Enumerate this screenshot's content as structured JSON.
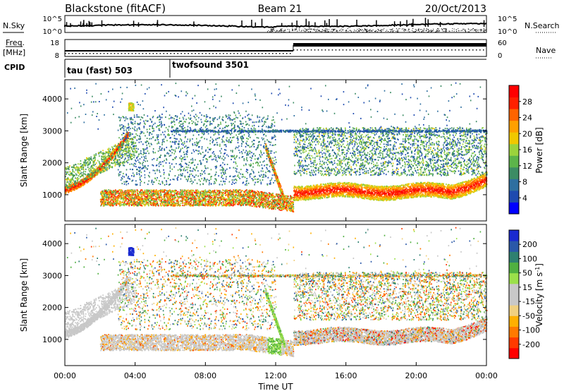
{
  "header": {
    "site": "Blackstone (fitACF)",
    "beam": "Beam 21",
    "date": "20/Oct/2013"
  },
  "left_labels": {
    "nsky": "N.Sky",
    "freq_line1": "Freq.",
    "freq_line2": "[MHz]",
    "cpid": "CPID"
  },
  "right_labels": {
    "nsearch": "N.Search",
    "nave": "Nave"
  },
  "noise_axis": {
    "left_ticks": [
      "10^5",
      "10^0"
    ],
    "right_ticks": [
      "10^5",
      "10^0"
    ]
  },
  "freq_axis": {
    "left_ticks": [
      "18",
      "8"
    ],
    "right_ticks": [
      "60",
      "0"
    ]
  },
  "cpid_segments": [
    {
      "label": "tau (fast) 503",
      "start_hour": 0,
      "end_hour": 6
    },
    {
      "label": "twofsound 3501",
      "start_hour": 6,
      "end_hour": 24
    }
  ],
  "time_axis": {
    "label": "Time UT",
    "ticks": [
      "00:00",
      "04:00",
      "08:00",
      "12:00",
      "16:00",
      "20:00",
      "00:00"
    ]
  },
  "chart_data": [
    {
      "type": "heatmap",
      "title": "",
      "xlabel": "Time UT",
      "ylabel": "Slant Range [km]",
      "xlim_hours": [
        0,
        24
      ],
      "ylim_km": [
        180,
        4600
      ],
      "y_ticks": [
        1000,
        2000,
        3000,
        4000
      ],
      "colorbar": {
        "label": "Power [dB]",
        "ticks": [
          "4",
          "8",
          "12",
          "16",
          "20",
          "24",
          "28"
        ],
        "range": [
          0,
          30
        ],
        "colors": [
          "#0000ff",
          "#1e4ab0",
          "#2e6fa0",
          "#3c8c64",
          "#5cb44a",
          "#9bd33c",
          "#f0c800",
          "#ffa000",
          "#ff6400",
          "#ff2000",
          "#ff0000"
        ]
      },
      "features": [
        {
          "name": "groundscatter band",
          "time_hours": [
            0,
            13
          ],
          "range_km": [
            600,
            1300
          ]
        },
        {
          "name": "rising trace",
          "time_hours": [
            0,
            3.5
          ],
          "range_km": [
            1100,
            3400
          ]
        },
        {
          "name": "main band",
          "time_hours": [
            13,
            24
          ],
          "range_km": [
            900,
            1700
          ]
        }
      ]
    },
    {
      "type": "heatmap",
      "title": "",
      "xlabel": "Time UT",
      "ylabel": "Slant Range [km]",
      "xlim_hours": [
        0,
        24
      ],
      "ylim_km": [
        180,
        4600
      ],
      "y_ticks": [
        1000,
        2000,
        3000,
        4000
      ],
      "colorbar": {
        "label": "Velocity [m s^-1]",
        "ticks": [
          "200",
          "100",
          "50",
          "15",
          "-15",
          "-50",
          "-100",
          "-200"
        ],
        "range": [
          -250,
          250
        ],
        "colors": [
          "#ff0000",
          "#ff3a00",
          "#ff7a00",
          "#ffb000",
          "#f0d080",
          "#c8c8c8",
          "#c8c8c8",
          "#9be04a",
          "#50b040",
          "#2e8070",
          "#2a58a8",
          "#1a2ad0"
        ]
      },
      "features": [
        {
          "name": "groundscatter (grey)",
          "time_hours": [
            0,
            13
          ],
          "range_km": [
            600,
            1300
          ]
        },
        {
          "name": "rising trace (grey)",
          "time_hours": [
            0,
            3.5
          ],
          "range_km": [
            1100,
            3100
          ]
        },
        {
          "name": "main band (grey)",
          "time_hours": [
            13,
            24
          ],
          "range_km": [
            900,
            1600
          ]
        }
      ]
    }
  ]
}
